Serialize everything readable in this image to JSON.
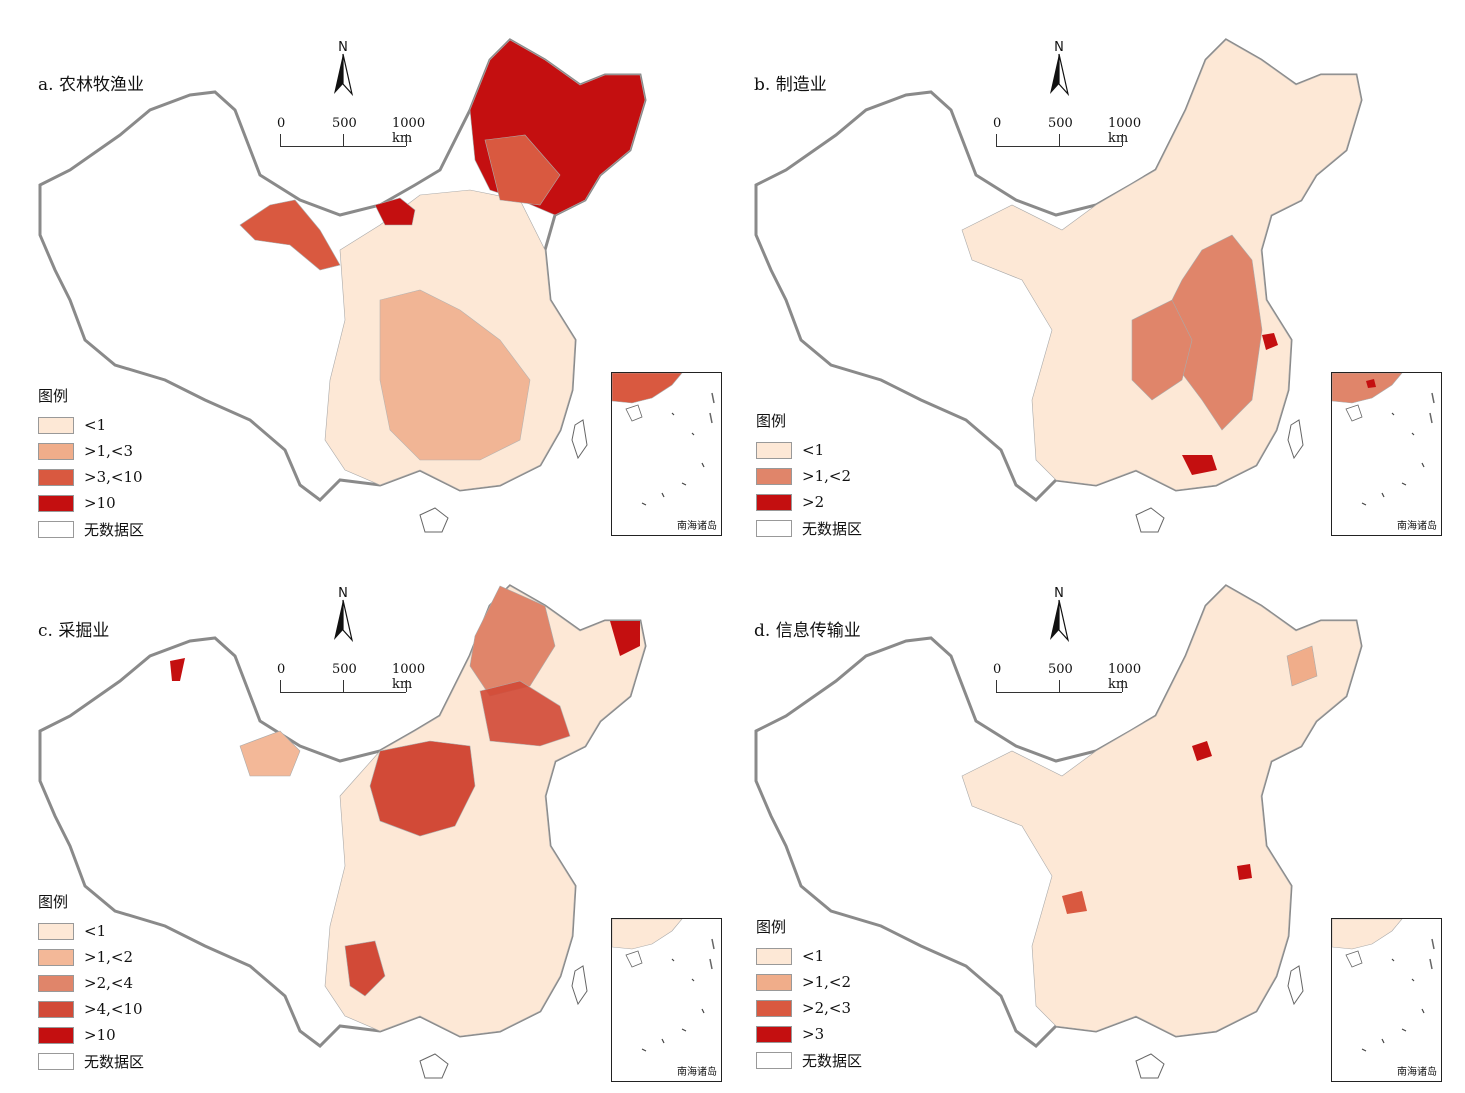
{
  "colors": {
    "border": "#8a8a8a",
    "nodata": "#ffffff",
    "c1": "#fde8d6",
    "c2": "#f0ad8a",
    "c3": "#d95940",
    "c4": "#c40f10"
  },
  "common": {
    "north_label": "N",
    "scale_labels": [
      "0",
      "500",
      "1000 km"
    ],
    "inset_label": "南海诸岛",
    "legend_title": "图例"
  },
  "panels": [
    {
      "title": "a. 农林牧渔业",
      "legend": [
        {
          "label": "<1",
          "color": "#fde8d6"
        },
        {
          "label": ">1,<3",
          "color": "#f0ad8a"
        },
        {
          "label": ">3,<10",
          "color": "#d95940"
        },
        {
          "label": ">10",
          "color": "#c40f10"
        },
        {
          "label": "无数据区",
          "color": "#ffffff"
        }
      ]
    },
    {
      "title": "b. 制造业",
      "legend": [
        {
          "label": "<1",
          "color": "#fde8d6"
        },
        {
          "label": ">1,<2",
          "color": "#e0856a"
        },
        {
          "label": ">2",
          "color": "#c40f10"
        },
        {
          "label": "无数据区",
          "color": "#ffffff"
        }
      ]
    },
    {
      "title": "c. 采掘业",
      "legend": [
        {
          "label": "<1",
          "color": "#fde8d6"
        },
        {
          "label": ">1,<2",
          "color": "#f3b898"
        },
        {
          "label": ">2,<4",
          "color": "#e0856a"
        },
        {
          "label": ">4,<10",
          "color": "#d24a37"
        },
        {
          "label": ">10",
          "color": "#c40f10"
        },
        {
          "label": "无数据区",
          "color": "#ffffff"
        }
      ]
    },
    {
      "title": "d. 信息传输业",
      "legend": [
        {
          "label": "<1",
          "color": "#fde8d6"
        },
        {
          "label": ">1,<2",
          "color": "#f0ad8a"
        },
        {
          "label": ">2,<3",
          "color": "#d95940"
        },
        {
          "label": ">3",
          "color": "#c40f10"
        },
        {
          "label": "无数据区",
          "color": "#ffffff"
        }
      ]
    }
  ]
}
